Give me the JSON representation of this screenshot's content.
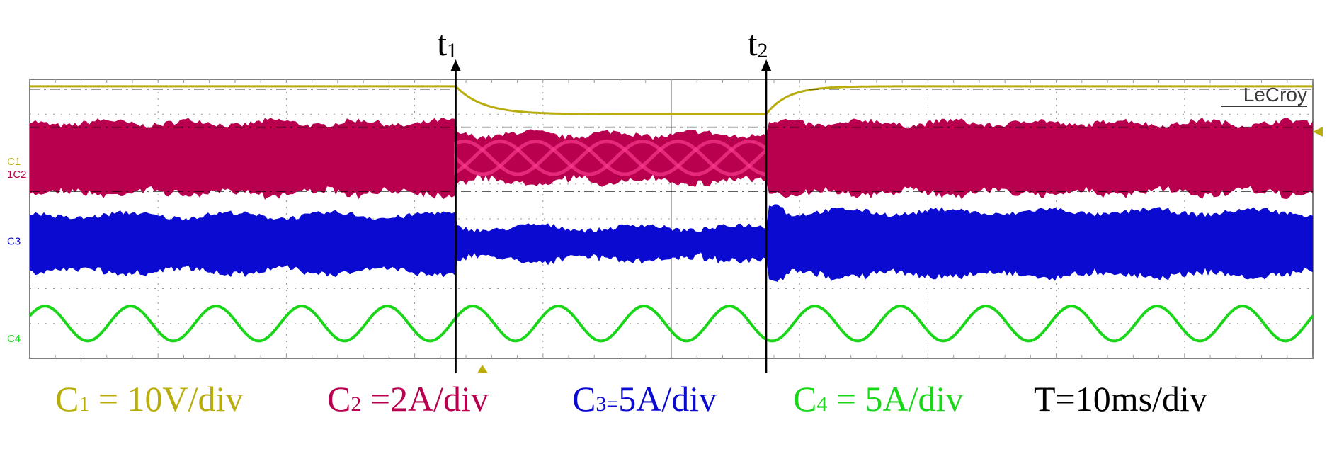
{
  "brand": "LeCroy",
  "colors": {
    "c1": "#b8ad0c",
    "c2": "#b8004e",
    "c2_mid": "#ff3d92",
    "c3": "#0a0ad0",
    "c4": "#19d619",
    "text_black": "#000000"
  },
  "markers": [
    {
      "id": "t1",
      "base": "t",
      "sub": "1"
    },
    {
      "id": "t2",
      "base": "t",
      "sub": "2"
    }
  ],
  "channel_tags": [
    {
      "id": "c1",
      "text": "C1"
    },
    {
      "id": "c2",
      "text": "1C2"
    },
    {
      "id": "c3",
      "text": "C3"
    },
    {
      "id": "c4",
      "text": "C4"
    }
  ],
  "legend": [
    {
      "id": "c1",
      "base": "C",
      "sub": "1",
      "rest": " = 10V/div"
    },
    {
      "id": "c2",
      "base": "C",
      "sub": "2",
      "rest": " =2A/div"
    },
    {
      "id": "c3",
      "base": "C",
      "sub": "3=",
      "rest": "5A/div"
    },
    {
      "id": "c4",
      "base": "C",
      "sub": "4",
      "rest": " = 5A/div"
    },
    {
      "id": "t",
      "base": "T=10ms/div",
      "sub": "",
      "rest": ""
    }
  ],
  "chart_data": {
    "type": "line",
    "title": "",
    "xlabel": "",
    "ylabel": "",
    "time_per_div_ms": 10,
    "divisions": {
      "x": 10,
      "y": 8
    },
    "grid": true,
    "events_div": {
      "t1": 3.32,
      "t2": 5.74
    },
    "series": [
      {
        "id": "c1",
        "name": "C1",
        "scale": "10V/div",
        "kind": "dc_voltage",
        "level_div_before": 7.8,
        "level_div_during": 7.0,
        "level_div_after": 7.8
      },
      {
        "id": "c2",
        "name": "C2",
        "scale": "2A/div",
        "kind": "hf_ripple_band",
        "center_div": 5.75,
        "band_div_before": 2.0,
        "band_div_during": 1.35,
        "band_div_after": 2.0
      },
      {
        "id": "c3",
        "name": "C3",
        "scale": "5A/div",
        "kind": "hf_ripple_band",
        "center_div": 3.3,
        "band_div_before": 1.6,
        "band_div_during": 0.9,
        "band_div_after": 1.8
      },
      {
        "id": "c4",
        "name": "C4",
        "scale": "5A/div",
        "kind": "sine",
        "center_div": 1.0,
        "amplitude_div": 0.5,
        "cycles_on_screen": 15
      }
    ]
  }
}
